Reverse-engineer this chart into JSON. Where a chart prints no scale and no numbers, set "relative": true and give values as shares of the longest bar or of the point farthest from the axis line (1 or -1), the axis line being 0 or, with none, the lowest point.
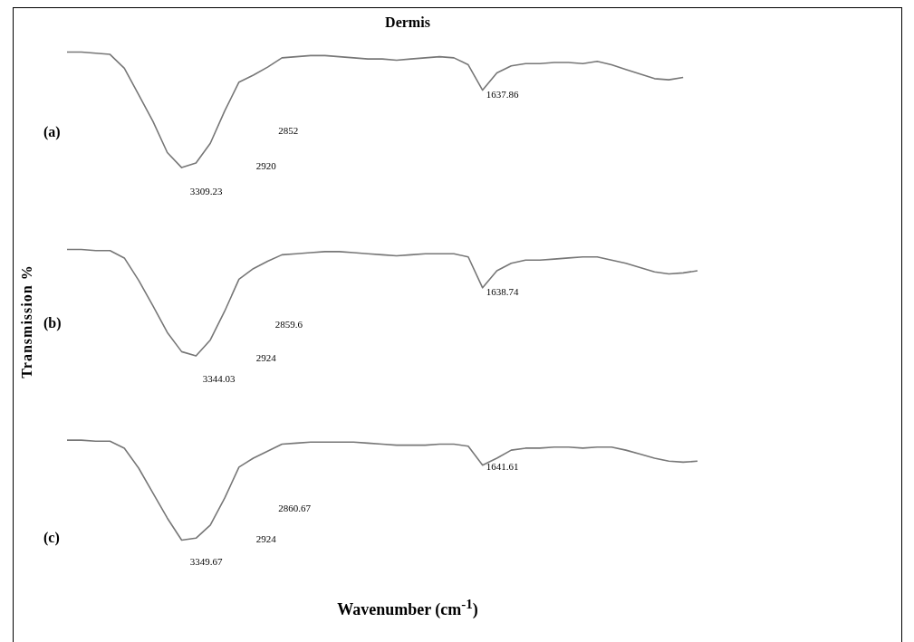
{
  "chart_data": [
    {
      "type": "line",
      "title": "Dermis",
      "relative": true,
      "categories": [
        null,
        null,
        null,
        null,
        null,
        null,
        null,
        null,
        null,
        null,
        null,
        null,
        null,
        null,
        null,
        null,
        null,
        null,
        null,
        null,
        null,
        null,
        null,
        null,
        null,
        null,
        null,
        null,
        null,
        null,
        null,
        null,
        null,
        null,
        null,
        null,
        null,
        null,
        null,
        null,
        null,
        null,
        null,
        null,
        null
      ],
      "annotations": [
        "(a)",
        "3309.23",
        "2920",
        "2852",
        "1637.86"
      ],
      "series": [
        {
          "color": "#777777",
          "values": [
            1.0,
            1.0,
            0.99,
            0.98,
            0.86,
            0.63,
            0.4,
            0.13,
            0.0,
            0.04,
            0.21,
            0.49,
            0.74,
            0.8,
            0.87,
            0.95,
            0.96,
            0.97,
            0.97,
            0.96,
            0.95,
            0.94,
            0.94,
            0.93,
            0.94,
            0.95,
            0.96,
            0.95,
            0.89,
            0.67,
            0.82,
            0.88,
            0.9,
            0.9,
            0.91,
            0.91,
            0.9,
            0.92,
            0.89,
            0.85,
            0.81,
            0.77,
            0.76,
            0.78,
            null
          ]
        }
      ]
    },
    {
      "type": "line",
      "ylabel": "Transmission %",
      "relative": true,
      "categories": [
        null,
        null,
        null,
        null,
        null,
        null,
        null,
        null,
        null,
        null,
        null,
        null,
        null,
        null,
        null,
        null,
        null,
        null,
        null,
        null,
        null,
        null,
        null,
        null,
        null,
        null,
        null,
        null,
        null,
        null,
        null,
        null,
        null,
        null,
        null,
        null,
        null,
        null,
        null,
        null,
        null,
        null,
        null,
        null,
        null
      ],
      "annotations": [
        "(b)",
        "3344.03",
        "2924",
        "2859.6",
        "1638.74"
      ],
      "series": [
        {
          "color": "#777777",
          "values": [
            1.0,
            1.0,
            0.99,
            0.99,
            0.92,
            0.71,
            0.47,
            0.22,
            0.04,
            0.0,
            0.15,
            0.42,
            0.72,
            0.82,
            0.89,
            0.95,
            0.96,
            0.97,
            0.98,
            0.98,
            0.97,
            0.96,
            0.95,
            0.94,
            0.95,
            0.96,
            0.96,
            0.96,
            0.93,
            0.64,
            0.8,
            0.87,
            0.9,
            0.9,
            0.91,
            0.92,
            0.93,
            0.93,
            0.9,
            0.87,
            0.83,
            0.79,
            0.77,
            0.78,
            0.8
          ]
        }
      ]
    },
    {
      "type": "line",
      "xlabel": "Wavenumber (cm$^{-1}$)",
      "relative": true,
      "categories": [
        null,
        null,
        null,
        null,
        null,
        null,
        null,
        null,
        null,
        null,
        null,
        null,
        null,
        null,
        null,
        null,
        null,
        null,
        null,
        null,
        null,
        null,
        null,
        null,
        null,
        null,
        null,
        null,
        null,
        null,
        null,
        null,
        null,
        null,
        null,
        null,
        null,
        null,
        null,
        null,
        null,
        null,
        null,
        null,
        null
      ],
      "annotations": [
        "(c)",
        "3349.67",
        "2924",
        "2860.67",
        "1641.61"
      ],
      "series": [
        {
          "color": "#777777",
          "values": [
            1.0,
            1.0,
            0.99,
            0.99,
            0.92,
            0.72,
            0.47,
            0.22,
            0.0,
            0.02,
            0.15,
            0.42,
            0.73,
            0.82,
            0.89,
            0.96,
            0.97,
            0.98,
            0.98,
            0.98,
            0.98,
            0.97,
            0.96,
            0.95,
            0.95,
            0.95,
            0.96,
            0.96,
            0.94,
            0.75,
            0.82,
            0.9,
            0.92,
            0.92,
            0.93,
            0.93,
            0.92,
            0.93,
            0.93,
            0.9,
            0.86,
            0.82,
            0.79,
            0.78,
            0.79
          ]
        }
      ]
    }
  ]
}
